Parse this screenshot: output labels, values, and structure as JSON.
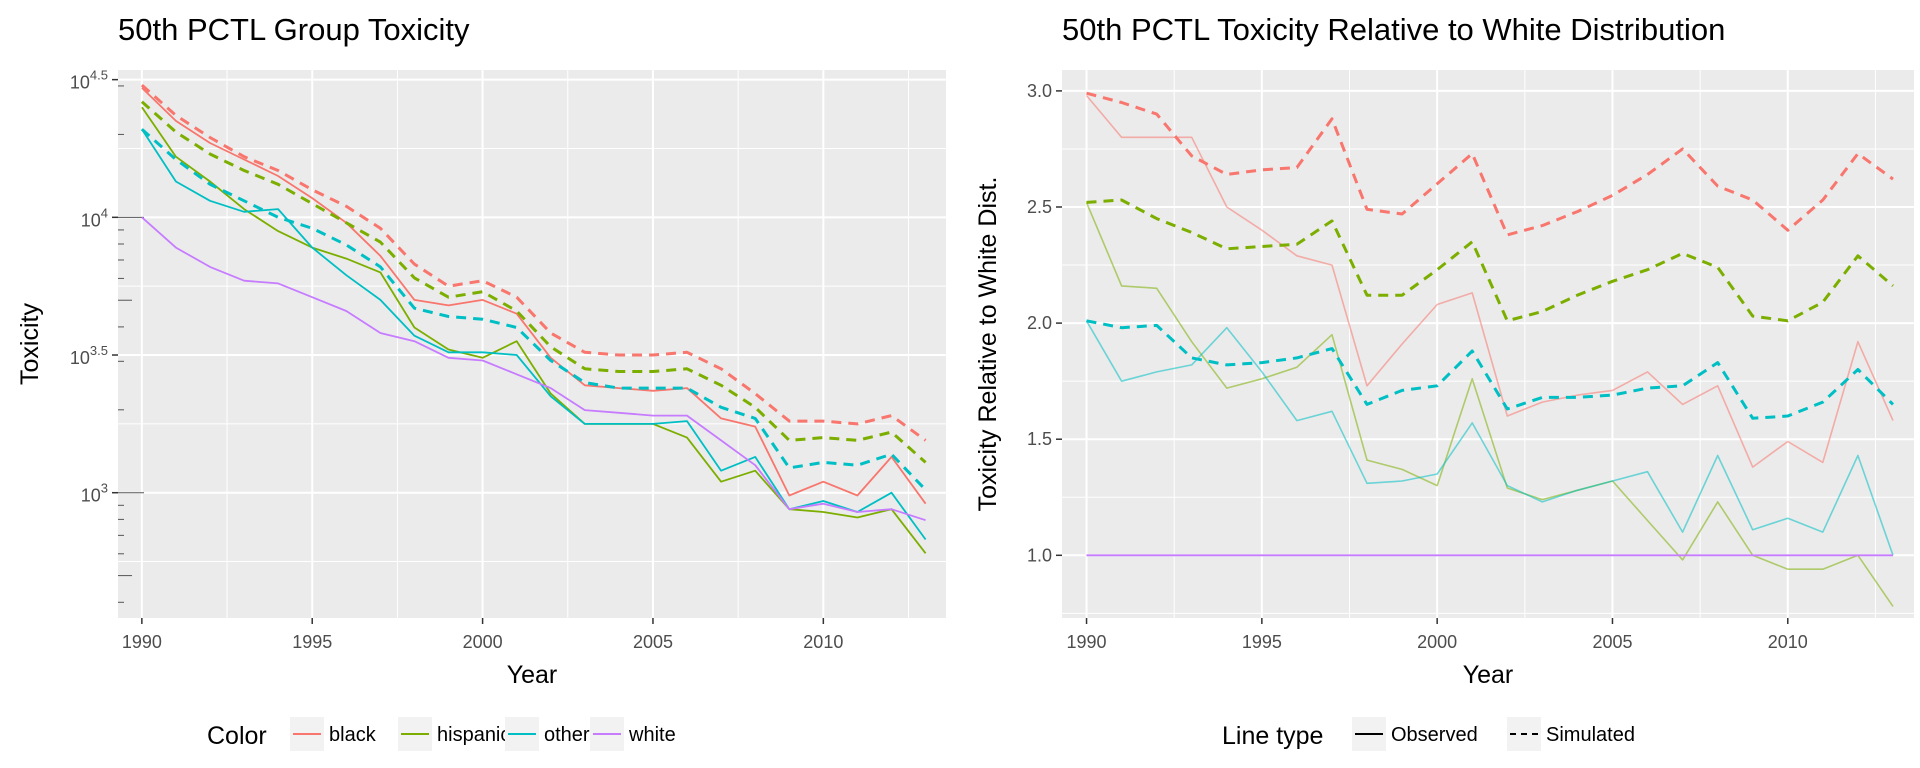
{
  "chart_data": [
    {
      "type": "line",
      "title": "50th PCTL Group Toxicity",
      "xlabel": "Year",
      "ylabel": "Toxicity",
      "y_scale": "log10",
      "x": [
        1990,
        1991,
        1992,
        1993,
        1994,
        1995,
        1996,
        1997,
        1998,
        1999,
        2000,
        2001,
        2002,
        2003,
        2004,
        2005,
        2006,
        2007,
        2008,
        2009,
        2010,
        2011,
        2012,
        2013
      ],
      "xlim": [
        1989.3,
        2013.6
      ],
      "ylim_log10": [
        2.545,
        4.535
      ],
      "x_ticks": [
        1990,
        1995,
        2000,
        2005,
        2010
      ],
      "x_tick_labels": [
        "1990",
        "1995",
        "2000",
        "2005",
        "2010"
      ],
      "y_ticks_log10": [
        3.0,
        3.5,
        4.0,
        4.5
      ],
      "y_tick_base": "10",
      "y_tick_exponents": [
        "3",
        "3.5",
        "4",
        "4.5"
      ],
      "grid": true,
      "series": [
        {
          "name": "black",
          "linetype": "Observed",
          "color": "#F8766D",
          "log10_values": [
            4.47,
            4.35,
            4.27,
            4.21,
            4.15,
            4.07,
            3.98,
            3.86,
            3.7,
            3.68,
            3.7,
            3.65,
            3.49,
            3.39,
            3.38,
            3.37,
            3.38,
            3.27,
            3.24,
            2.99,
            3.04,
            2.99,
            3.13,
            2.96
          ]
        },
        {
          "name": "black",
          "linetype": "Simulated",
          "color": "#F8766D",
          "log10_values": [
            4.48,
            4.37,
            4.29,
            4.22,
            4.17,
            4.1,
            4.04,
            3.96,
            3.83,
            3.75,
            3.77,
            3.71,
            3.58,
            3.51,
            3.5,
            3.5,
            3.51,
            3.45,
            3.36,
            3.26,
            3.26,
            3.25,
            3.28,
            3.19
          ]
        },
        {
          "name": "hispanic",
          "linetype": "Observed",
          "color": "#7CAE00",
          "log10_values": [
            4.4,
            4.22,
            4.13,
            4.03,
            3.95,
            3.89,
            3.85,
            3.8,
            3.6,
            3.52,
            3.49,
            3.55,
            3.36,
            3.25,
            3.25,
            3.25,
            3.2,
            3.04,
            3.08,
            2.94,
            2.93,
            2.91,
            2.94,
            2.78
          ]
        },
        {
          "name": "hispanic",
          "linetype": "Simulated",
          "color": "#7CAE00",
          "log10_values": [
            4.42,
            4.31,
            4.23,
            4.17,
            4.12,
            4.05,
            3.98,
            3.91,
            3.78,
            3.71,
            3.73,
            3.66,
            3.53,
            3.45,
            3.44,
            3.44,
            3.45,
            3.39,
            3.31,
            3.19,
            3.2,
            3.19,
            3.22,
            3.11
          ]
        },
        {
          "name": "other",
          "linetype": "Observed",
          "color": "#00BFC4",
          "log10_values": [
            4.32,
            4.13,
            4.06,
            4.02,
            4.03,
            3.89,
            3.79,
            3.7,
            3.57,
            3.51,
            3.51,
            3.5,
            3.35,
            3.25,
            3.25,
            3.25,
            3.26,
            3.08,
            3.13,
            2.94,
            2.97,
            2.93,
            3.0,
            2.83
          ]
        },
        {
          "name": "other",
          "linetype": "Simulated",
          "color": "#00BFC4",
          "log10_values": [
            4.32,
            4.21,
            4.12,
            4.06,
            4.0,
            3.96,
            3.9,
            3.82,
            3.67,
            3.64,
            3.63,
            3.6,
            3.48,
            3.4,
            3.38,
            3.38,
            3.38,
            3.31,
            3.27,
            3.09,
            3.11,
            3.1,
            3.14,
            3.01
          ]
        },
        {
          "name": "white",
          "linetype": "Observed",
          "color": "#C77CFF",
          "log10_values": [
            4.0,
            3.89,
            3.82,
            3.77,
            3.76,
            3.71,
            3.66,
            3.58,
            3.55,
            3.49,
            3.48,
            3.43,
            3.38,
            3.3,
            3.29,
            3.28,
            3.28,
            3.19,
            3.1,
            2.94,
            2.96,
            2.93,
            2.94,
            2.9
          ]
        }
      ]
    },
    {
      "type": "line",
      "title": "50th PCTL Toxicity Relative to White Distribution",
      "xlabel": "Year",
      "ylabel": "Toxicity Relative to White Dist.",
      "x": [
        1990,
        1991,
        1992,
        1993,
        1994,
        1995,
        1996,
        1997,
        1998,
        1999,
        2000,
        2001,
        2002,
        2003,
        2004,
        2005,
        2006,
        2007,
        2008,
        2009,
        2010,
        2011,
        2012,
        2013
      ],
      "xlim": [
        1989.3,
        2013.6
      ],
      "ylim": [
        0.73,
        3.09
      ],
      "x_ticks": [
        1990,
        1995,
        2000,
        2005,
        2010
      ],
      "x_tick_labels": [
        "1990",
        "1995",
        "2000",
        "2005",
        "2010"
      ],
      "y_ticks": [
        1.0,
        1.5,
        2.0,
        2.5,
        3.0
      ],
      "y_tick_labels": [
        "1.0",
        "1.5",
        "2.0",
        "2.5",
        "3.0"
      ],
      "grid": true,
      "series": [
        {
          "name": "black",
          "linetype": "Observed",
          "color": "#F8766D",
          "values": [
            2.98,
            2.8,
            2.8,
            2.8,
            2.5,
            2.4,
            2.29,
            2.25,
            1.73,
            1.91,
            2.08,
            2.13,
            1.6,
            1.66,
            1.69,
            1.71,
            1.79,
            1.65,
            1.73,
            1.38,
            1.49,
            1.4,
            1.92,
            1.58
          ]
        },
        {
          "name": "black",
          "linetype": "Simulated",
          "color": "#F8766D",
          "values": [
            2.99,
            2.95,
            2.9,
            2.72,
            2.64,
            2.66,
            2.67,
            2.88,
            2.49,
            2.47,
            2.6,
            2.73,
            2.38,
            2.42,
            2.48,
            2.55,
            2.64,
            2.75,
            2.59,
            2.53,
            2.4,
            2.53,
            2.73,
            2.62
          ]
        },
        {
          "name": "hispanic",
          "linetype": "Observed",
          "color": "#7CAE00",
          "values": [
            2.52,
            2.16,
            2.15,
            1.92,
            1.72,
            1.76,
            1.81,
            1.95,
            1.41,
            1.37,
            1.3,
            1.76,
            1.29,
            1.24,
            1.28,
            1.32,
            1.15,
            0.98,
            1.23,
            1.0,
            0.94,
            0.94,
            1.0,
            0.78
          ]
        },
        {
          "name": "hispanic",
          "linetype": "Simulated",
          "color": "#7CAE00",
          "values": [
            2.52,
            2.53,
            2.45,
            2.39,
            2.32,
            2.33,
            2.34,
            2.44,
            2.12,
            2.12,
            2.23,
            2.35,
            2.01,
            2.05,
            2.12,
            2.18,
            2.23,
            2.3,
            2.24,
            2.03,
            2.01,
            2.09,
            2.29,
            2.16
          ]
        },
        {
          "name": "other",
          "linetype": "Observed",
          "color": "#00BFC4",
          "values": [
            2.01,
            1.75,
            1.79,
            1.82,
            1.98,
            1.79,
            1.58,
            1.62,
            1.31,
            1.32,
            1.35,
            1.57,
            1.3,
            1.23,
            1.28,
            1.32,
            1.36,
            1.1,
            1.43,
            1.11,
            1.16,
            1.1,
            1.43,
            1.0
          ]
        },
        {
          "name": "other",
          "linetype": "Simulated",
          "color": "#00BFC4",
          "values": [
            2.01,
            1.98,
            1.99,
            1.85,
            1.82,
            1.83,
            1.85,
            1.89,
            1.65,
            1.71,
            1.73,
            1.88,
            1.63,
            1.68,
            1.68,
            1.69,
            1.72,
            1.73,
            1.83,
            1.59,
            1.6,
            1.66,
            1.8,
            1.65
          ]
        },
        {
          "name": "white",
          "linetype": "Observed",
          "color": "#C77CFF",
          "values": [
            1,
            1,
            1,
            1,
            1,
            1,
            1,
            1,
            1,
            1,
            1,
            1,
            1,
            1,
            1,
            1,
            1,
            1,
            1,
            1,
            1,
            1,
            1,
            1
          ]
        }
      ]
    }
  ],
  "legend_color": {
    "title": "Color",
    "placement": "bottom",
    "items": [
      {
        "label": "black",
        "color": "#F8766D"
      },
      {
        "label": "hispanic",
        "color": "#7CAE00"
      },
      {
        "label": "other",
        "color": "#00BFC4"
      },
      {
        "label": "white",
        "color": "#C77CFF"
      }
    ]
  },
  "legend_linetype": {
    "title": "Line type",
    "placement": "bottom",
    "items": [
      {
        "label": "Observed",
        "dash": "solid"
      },
      {
        "label": "Simulated",
        "dash": "dashed"
      }
    ]
  }
}
